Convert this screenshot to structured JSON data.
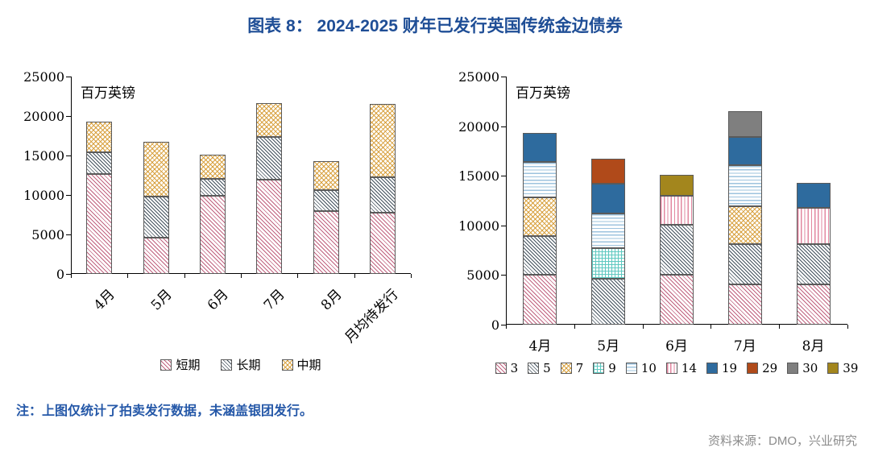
{
  "title": "图表 8： 2024-2025 财年已发行英国传统金边债券",
  "note": "注：上图仅统计了拍卖发行数据，未涵盖银团发行。",
  "source": "资料来源：DMO，兴业研究",
  "colors": {
    "title": "#1F4E96",
    "note": "#2558A8",
    "source": "#8C8C8C",
    "axis": "#000000"
  },
  "chart_data": [
    {
      "type": "bar",
      "stacked": true,
      "unit_label": "百万英镑",
      "categories": [
        "4月",
        "5月",
        "6月",
        "7月",
        "8月",
        "月均待发行"
      ],
      "ylim": [
        0,
        25000
      ],
      "ytick_step": 5000,
      "grid": false,
      "legend_position": "bottom",
      "series": [
        {
          "name": "短期",
          "pattern": "pink-diag",
          "color": "#C0617E",
          "values": [
            12700,
            4600,
            9900,
            11900,
            8000,
            7800
          ]
        },
        {
          "name": "长期",
          "pattern": "gray-diag",
          "color": "#44525E",
          "values": [
            2700,
            5200,
            2100,
            5400,
            2600,
            4400
          ]
        },
        {
          "name": "中期",
          "pattern": "gold-cross",
          "color": "#D8A13F",
          "values": [
            3900,
            6900,
            3100,
            4300,
            3700,
            9300
          ]
        }
      ]
    },
    {
      "type": "bar",
      "stacked": true,
      "unit_label": "百万英镑",
      "categories": [
        "4月",
        "5月",
        "6月",
        "7月",
        "8月"
      ],
      "ylim": [
        0,
        25000
      ],
      "ytick_step": 5000,
      "grid": false,
      "legend_position": "bottom",
      "series": [
        {
          "name": "3",
          "pattern": "pink-diag",
          "color": "#C0617E",
          "values": [
            5000,
            0,
            5000,
            4100,
            4100
          ]
        },
        {
          "name": "5",
          "pattern": "gray-diag",
          "color": "#44525E",
          "values": [
            3900,
            4600,
            5100,
            4000,
            4000
          ]
        },
        {
          "name": "7",
          "pattern": "gold-cross",
          "color": "#D8A13F",
          "values": [
            3900,
            0,
            0,
            3800,
            0
          ]
        },
        {
          "name": "9",
          "pattern": "teal-grid",
          "color": "#5EC8C0",
          "values": [
            0,
            3100,
            0,
            0,
            0
          ]
        },
        {
          "name": "10",
          "pattern": "blue-horiz",
          "color": "#9DC3DE",
          "values": [
            3600,
            3500,
            0,
            4200,
            0
          ]
        },
        {
          "name": "14",
          "pattern": "pink-vert",
          "color": "#E287A0",
          "values": [
            0,
            0,
            2900,
            0,
            3700
          ]
        },
        {
          "name": "19",
          "pattern": "solid-blue",
          "color": "#2E6B9E",
          "values": [
            2900,
            3000,
            0,
            2800,
            2500
          ]
        },
        {
          "name": "29",
          "pattern": "solid-rust",
          "color": "#B04A1A",
          "values": [
            0,
            2500,
            0,
            0,
            0
          ]
        },
        {
          "name": "30",
          "pattern": "solid-gray",
          "color": "#7F7F7F",
          "values": [
            0,
            0,
            0,
            2600,
            0
          ]
        },
        {
          "name": "39",
          "pattern": "solid-olive",
          "color": "#A3861D",
          "values": [
            0,
            0,
            2100,
            0,
            0
          ]
        }
      ]
    }
  ]
}
